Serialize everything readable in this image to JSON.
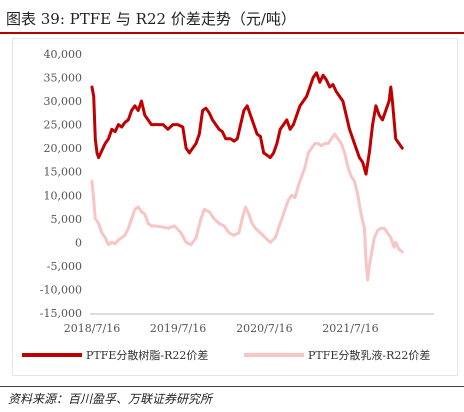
{
  "figure": {
    "title": "图表 39:  PTFE 与 R22 价差走势（元/吨）",
    "source": "资料来源：百川盈孚、万联证券研究所"
  },
  "colors": {
    "title_rule": "#b30000",
    "series_resin": "#c00000",
    "series_emulsion": "#f8c4c4",
    "axis_text": "#555555"
  },
  "chart_data": {
    "type": "line",
    "title": "",
    "xlabel": "",
    "ylabel": "",
    "ylim": [
      -15000,
      40000
    ],
    "yticks": [
      -15000,
      -10000,
      -5000,
      0,
      5000,
      10000,
      15000,
      20000,
      25000,
      30000,
      35000,
      40000
    ],
    "ytick_labels": [
      "-15,000",
      "-10,000",
      "-5,000",
      "0",
      "5,000",
      "10,000",
      "15,000",
      "20,000",
      "25,000",
      "30,000",
      "35,000",
      "40,000"
    ],
    "xlim": [
      "2018-07-16",
      "2022-02-28"
    ],
    "xticks": [
      "2018-07-16",
      "2019-07-16",
      "2020-07-16",
      "2021-07-16"
    ],
    "xtick_labels": [
      "2018/7/16",
      "2019/7/16",
      "2020/7/16",
      "2021/7/16"
    ],
    "legend_position": "bottom",
    "grid": false,
    "series": [
      {
        "name": "PTFE分散树脂-R22价差",
        "points": [
          [
            "2018-07-16",
            33000
          ],
          [
            "2018-07-23",
            31000
          ],
          [
            "2018-07-30",
            22000
          ],
          [
            "2018-08-06",
            19000
          ],
          [
            "2018-08-13",
            18000
          ],
          [
            "2018-08-27",
            19500
          ],
          [
            "2018-09-10",
            21000
          ],
          [
            "2018-09-24",
            22000
          ],
          [
            "2018-10-08",
            24000
          ],
          [
            "2018-10-22",
            23500
          ],
          [
            "2018-11-05",
            25000
          ],
          [
            "2018-11-19",
            24500
          ],
          [
            "2018-12-03",
            25500
          ],
          [
            "2018-12-17",
            26000
          ],
          [
            "2018-12-31",
            28000
          ],
          [
            "2019-01-14",
            29000
          ],
          [
            "2019-01-28",
            28000
          ],
          [
            "2019-02-11",
            30000
          ],
          [
            "2019-02-25",
            27000
          ],
          [
            "2019-03-11",
            26000
          ],
          [
            "2019-03-25",
            25000
          ],
          [
            "2019-04-08",
            25000
          ],
          [
            "2019-04-29",
            25000
          ],
          [
            "2019-05-13",
            25000
          ],
          [
            "2019-06-03",
            24000
          ],
          [
            "2019-06-24",
            25000
          ],
          [
            "2019-07-15",
            25000
          ],
          [
            "2019-08-05",
            24500
          ],
          [
            "2019-08-19",
            20000
          ],
          [
            "2019-09-02",
            19000
          ],
          [
            "2019-09-16",
            20000
          ],
          [
            "2019-09-30",
            21000
          ],
          [
            "2019-10-14",
            23000
          ],
          [
            "2019-10-28",
            28000
          ],
          [
            "2019-11-11",
            28500
          ],
          [
            "2019-11-25",
            27500
          ],
          [
            "2019-12-09",
            26000
          ],
          [
            "2019-12-23",
            25000
          ],
          [
            "2020-01-06",
            24000
          ],
          [
            "2020-01-20",
            23500
          ],
          [
            "2020-02-03",
            22000
          ],
          [
            "2020-02-24",
            22000
          ],
          [
            "2020-03-09",
            21500
          ],
          [
            "2020-03-23",
            22000
          ],
          [
            "2020-04-06",
            25000
          ],
          [
            "2020-04-20",
            28000
          ],
          [
            "2020-05-04",
            29000
          ],
          [
            "2020-05-18",
            27000
          ],
          [
            "2020-06-01",
            25000
          ],
          [
            "2020-06-15",
            23000
          ],
          [
            "2020-06-29",
            22500
          ],
          [
            "2020-07-13",
            19000
          ],
          [
            "2020-07-27",
            18500
          ],
          [
            "2020-08-10",
            18000
          ],
          [
            "2020-08-24",
            19000
          ],
          [
            "2020-09-07",
            21000
          ],
          [
            "2020-09-21",
            24000
          ],
          [
            "2020-10-05",
            25000
          ],
          [
            "2020-10-19",
            26000
          ],
          [
            "2020-11-02",
            24000
          ],
          [
            "2020-11-16",
            25000
          ],
          [
            "2020-11-30",
            27000
          ],
          [
            "2020-12-14",
            29000
          ],
          [
            "2020-12-28",
            30000
          ],
          [
            "2021-01-11",
            31000
          ],
          [
            "2021-01-25",
            33000
          ],
          [
            "2021-02-08",
            35000
          ],
          [
            "2021-02-22",
            36000
          ],
          [
            "2021-03-08",
            34000
          ],
          [
            "2021-03-22",
            35500
          ],
          [
            "2021-04-05",
            34500
          ],
          [
            "2021-04-19",
            33000
          ],
          [
            "2021-05-03",
            33500
          ],
          [
            "2021-05-17",
            32000
          ],
          [
            "2021-05-31",
            31000
          ],
          [
            "2021-06-14",
            30000
          ],
          [
            "2021-06-28",
            27000
          ],
          [
            "2021-07-12",
            24000
          ],
          [
            "2021-07-26",
            22000
          ],
          [
            "2021-08-09",
            20000
          ],
          [
            "2021-08-23",
            18000
          ],
          [
            "2021-09-06",
            17000
          ],
          [
            "2021-09-20",
            14500
          ],
          [
            "2021-10-04",
            19000
          ],
          [
            "2021-10-18",
            25000
          ],
          [
            "2021-11-01",
            29000
          ],
          [
            "2021-11-15",
            27000
          ],
          [
            "2021-11-29",
            26000
          ],
          [
            "2021-12-13",
            28000
          ],
          [
            "2021-12-27",
            30000
          ],
          [
            "2022-01-03",
            33000
          ],
          [
            "2022-01-10",
            30000
          ],
          [
            "2022-01-24",
            22000
          ],
          [
            "2022-02-07",
            21000
          ],
          [
            "2022-02-21",
            20000
          ]
        ]
      },
      {
        "name": "PTFE分散乳液-R22价差",
        "points": [
          [
            "2018-07-16",
            13000
          ],
          [
            "2018-07-23",
            9000
          ],
          [
            "2018-07-30",
            5000
          ],
          [
            "2018-08-13",
            4000
          ],
          [
            "2018-08-27",
            2000
          ],
          [
            "2018-09-10",
            1000
          ],
          [
            "2018-09-24",
            -500
          ],
          [
            "2018-10-08",
            0
          ],
          [
            "2018-10-22",
            -300
          ],
          [
            "2018-11-05",
            500
          ],
          [
            "2018-11-19",
            1000
          ],
          [
            "2018-12-03",
            1500
          ],
          [
            "2018-12-17",
            3000
          ],
          [
            "2018-12-31",
            5000
          ],
          [
            "2019-01-14",
            7000
          ],
          [
            "2019-01-28",
            7500
          ],
          [
            "2019-02-11",
            6500
          ],
          [
            "2019-02-25",
            6000
          ],
          [
            "2019-03-11",
            4000
          ],
          [
            "2019-03-25",
            3500
          ],
          [
            "2019-04-08",
            3500
          ],
          [
            "2019-05-06",
            3300
          ],
          [
            "2019-06-03",
            3000
          ],
          [
            "2019-07-01",
            3500
          ],
          [
            "2019-07-29",
            2000
          ],
          [
            "2019-08-19",
            0
          ],
          [
            "2019-09-09",
            -500
          ],
          [
            "2019-09-30",
            1000
          ],
          [
            "2019-10-21",
            5000
          ],
          [
            "2019-11-04",
            7000
          ],
          [
            "2019-11-25",
            6500
          ],
          [
            "2019-12-16",
            5000
          ],
          [
            "2020-01-06",
            4000
          ],
          [
            "2020-01-27",
            3500
          ],
          [
            "2020-02-17",
            2000
          ],
          [
            "2020-03-09",
            1500
          ],
          [
            "2020-03-30",
            2000
          ],
          [
            "2020-04-13",
            5000
          ],
          [
            "2020-04-27",
            7500
          ],
          [
            "2020-05-11",
            6000
          ],
          [
            "2020-05-25",
            4000
          ],
          [
            "2020-06-08",
            3000
          ],
          [
            "2020-06-29",
            2000
          ],
          [
            "2020-07-20",
            1000
          ],
          [
            "2020-08-10",
            0
          ],
          [
            "2020-08-31",
            1000
          ],
          [
            "2020-09-21",
            4000
          ],
          [
            "2020-10-12",
            7000
          ],
          [
            "2020-10-26",
            9000
          ],
          [
            "2020-11-09",
            10000
          ],
          [
            "2020-11-23",
            9500
          ],
          [
            "2020-12-07",
            12000
          ],
          [
            "2020-12-21",
            14000
          ],
          [
            "2021-01-04",
            16000
          ],
          [
            "2021-01-18",
            19000
          ],
          [
            "2021-02-01",
            20000
          ],
          [
            "2021-02-15",
            21000
          ],
          [
            "2021-03-01",
            21000
          ],
          [
            "2021-03-15",
            20500
          ],
          [
            "2021-03-29",
            21000
          ],
          [
            "2021-04-12",
            21000
          ],
          [
            "2021-04-26",
            22000
          ],
          [
            "2021-05-10",
            23000
          ],
          [
            "2021-05-24",
            22000
          ],
          [
            "2021-06-07",
            21000
          ],
          [
            "2021-06-21",
            19000
          ],
          [
            "2021-07-05",
            16000
          ],
          [
            "2021-07-19",
            14000
          ],
          [
            "2021-08-02",
            13000
          ],
          [
            "2021-08-16",
            10000
          ],
          [
            "2021-08-30",
            6000
          ],
          [
            "2021-09-13",
            3000
          ],
          [
            "2021-09-20",
            -4000
          ],
          [
            "2021-09-27",
            -8000
          ],
          [
            "2021-10-04",
            -5000
          ],
          [
            "2021-10-11",
            -3000
          ],
          [
            "2021-10-25",
            1000
          ],
          [
            "2021-11-08",
            2500
          ],
          [
            "2021-11-22",
            3000
          ],
          [
            "2021-12-06",
            3000
          ],
          [
            "2021-12-20",
            2000
          ],
          [
            "2022-01-03",
            1000
          ],
          [
            "2022-01-10",
            0
          ],
          [
            "2022-01-17",
            -1000
          ],
          [
            "2022-01-24",
            0
          ],
          [
            "2022-02-07",
            -1500
          ],
          [
            "2022-02-21",
            -2000
          ]
        ]
      }
    ]
  }
}
